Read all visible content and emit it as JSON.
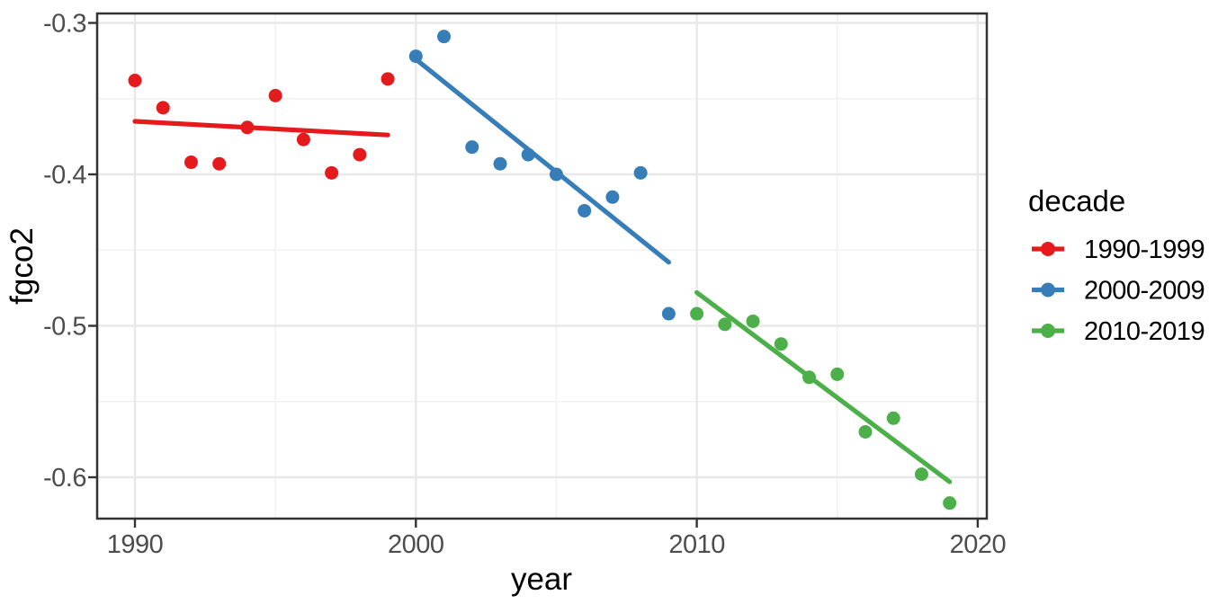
{
  "chart_data": {
    "type": "scatter",
    "title": "",
    "xlabel": "year",
    "ylabel": "fgco2",
    "grid": true,
    "xlim": [
      1988.6,
      2020.4
    ],
    "ylim": [
      -0.628,
      -0.293
    ],
    "x_axis": {
      "tick_values": [
        1990,
        2000,
        2010,
        2020
      ],
      "tick_labels": [
        "1990",
        "2000",
        "2010",
        "2020"
      ],
      "minor_tick_values": [
        1995,
        2005,
        2015
      ]
    },
    "y_axis": {
      "tick_values": [
        -0.3,
        -0.4,
        -0.5,
        -0.6
      ],
      "tick_labels": [
        "-0.3",
        "-0.4",
        "-0.5",
        "-0.6"
      ],
      "minor_tick_values": [
        -0.35,
        -0.45,
        -0.55
      ]
    },
    "legend": {
      "title": "decade",
      "position": "right",
      "entries": [
        "1990-1999",
        "2000-2009",
        "2010-2019"
      ]
    },
    "series": [
      {
        "name": "1990-1999",
        "color": "#E41A1C",
        "x": [
          1990,
          1991,
          1992,
          1993,
          1994,
          1995,
          1996,
          1997,
          1998,
          1999
        ],
        "y": [
          -0.338,
          -0.356,
          -0.392,
          -0.393,
          -0.369,
          -0.348,
          -0.377,
          -0.399,
          -0.387,
          -0.337
        ],
        "trend": {
          "x1": 1990,
          "y1": -0.365,
          "x2": 1999,
          "y2": -0.374
        }
      },
      {
        "name": "2000-2009",
        "color": "#377EB8",
        "x": [
          2000,
          2001,
          2002,
          2003,
          2004,
          2005,
          2006,
          2007,
          2008,
          2009
        ],
        "y": [
          -0.322,
          -0.309,
          -0.382,
          -0.393,
          -0.387,
          -0.4,
          -0.424,
          -0.415,
          -0.399,
          -0.492
        ],
        "trend": {
          "x1": 2000,
          "y1": -0.324,
          "x2": 2009,
          "y2": -0.458
        }
      },
      {
        "name": "2010-2019",
        "color": "#4DAF4A",
        "x": [
          2010,
          2011,
          2012,
          2013,
          2014,
          2015,
          2016,
          2017,
          2018,
          2019
        ],
        "y": [
          -0.492,
          -0.499,
          -0.497,
          -0.512,
          -0.534,
          -0.532,
          -0.57,
          -0.561,
          -0.598,
          -0.617
        ],
        "trend": {
          "x1": 2010,
          "y1": -0.478,
          "x2": 2019,
          "y2": -0.603
        }
      }
    ]
  },
  "colors": {
    "background": "#FFFFFF",
    "panel_background": "#FFFFFF",
    "grid_major": "#E8E8E8",
    "grid_minor": "#F1F1F1",
    "panel_border": "#333333",
    "tick_mark": "#333333",
    "tick_label": "#4D4D4D",
    "axis_title": "#000000"
  }
}
